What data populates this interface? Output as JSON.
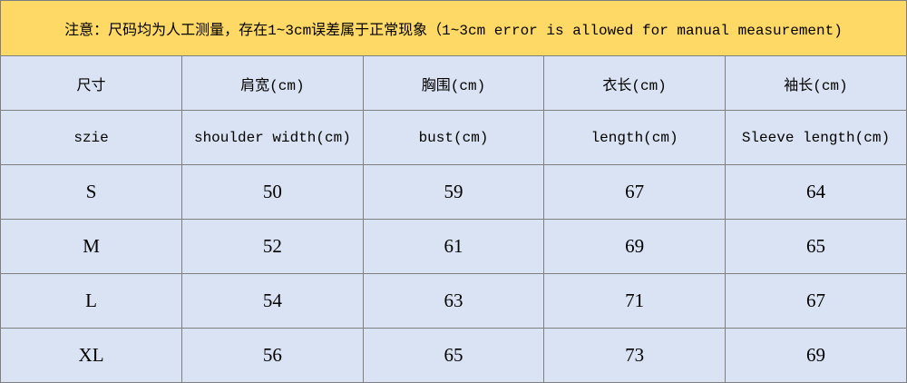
{
  "notice": "注意：尺码均为人工测量，存在1~3cm误差属于正常现象（1~3cm error is allowed for manual measurement)",
  "table": {
    "header_cn": [
      "尺寸",
      "肩宽(cm)",
      "胸围(cm)",
      "衣长(cm)",
      "袖长(cm)"
    ],
    "header_en": [
      "szie",
      "shoulder width(cm)",
      "bust(cm)",
      "length(cm)",
      "Sleeve length(cm)"
    ],
    "rows": [
      [
        "S",
        50,
        59,
        67,
        64
      ],
      [
        "M",
        52,
        61,
        69,
        65
      ],
      [
        "L",
        54,
        63,
        71,
        67
      ],
      [
        "XL",
        56,
        65,
        73,
        69
      ]
    ]
  }
}
